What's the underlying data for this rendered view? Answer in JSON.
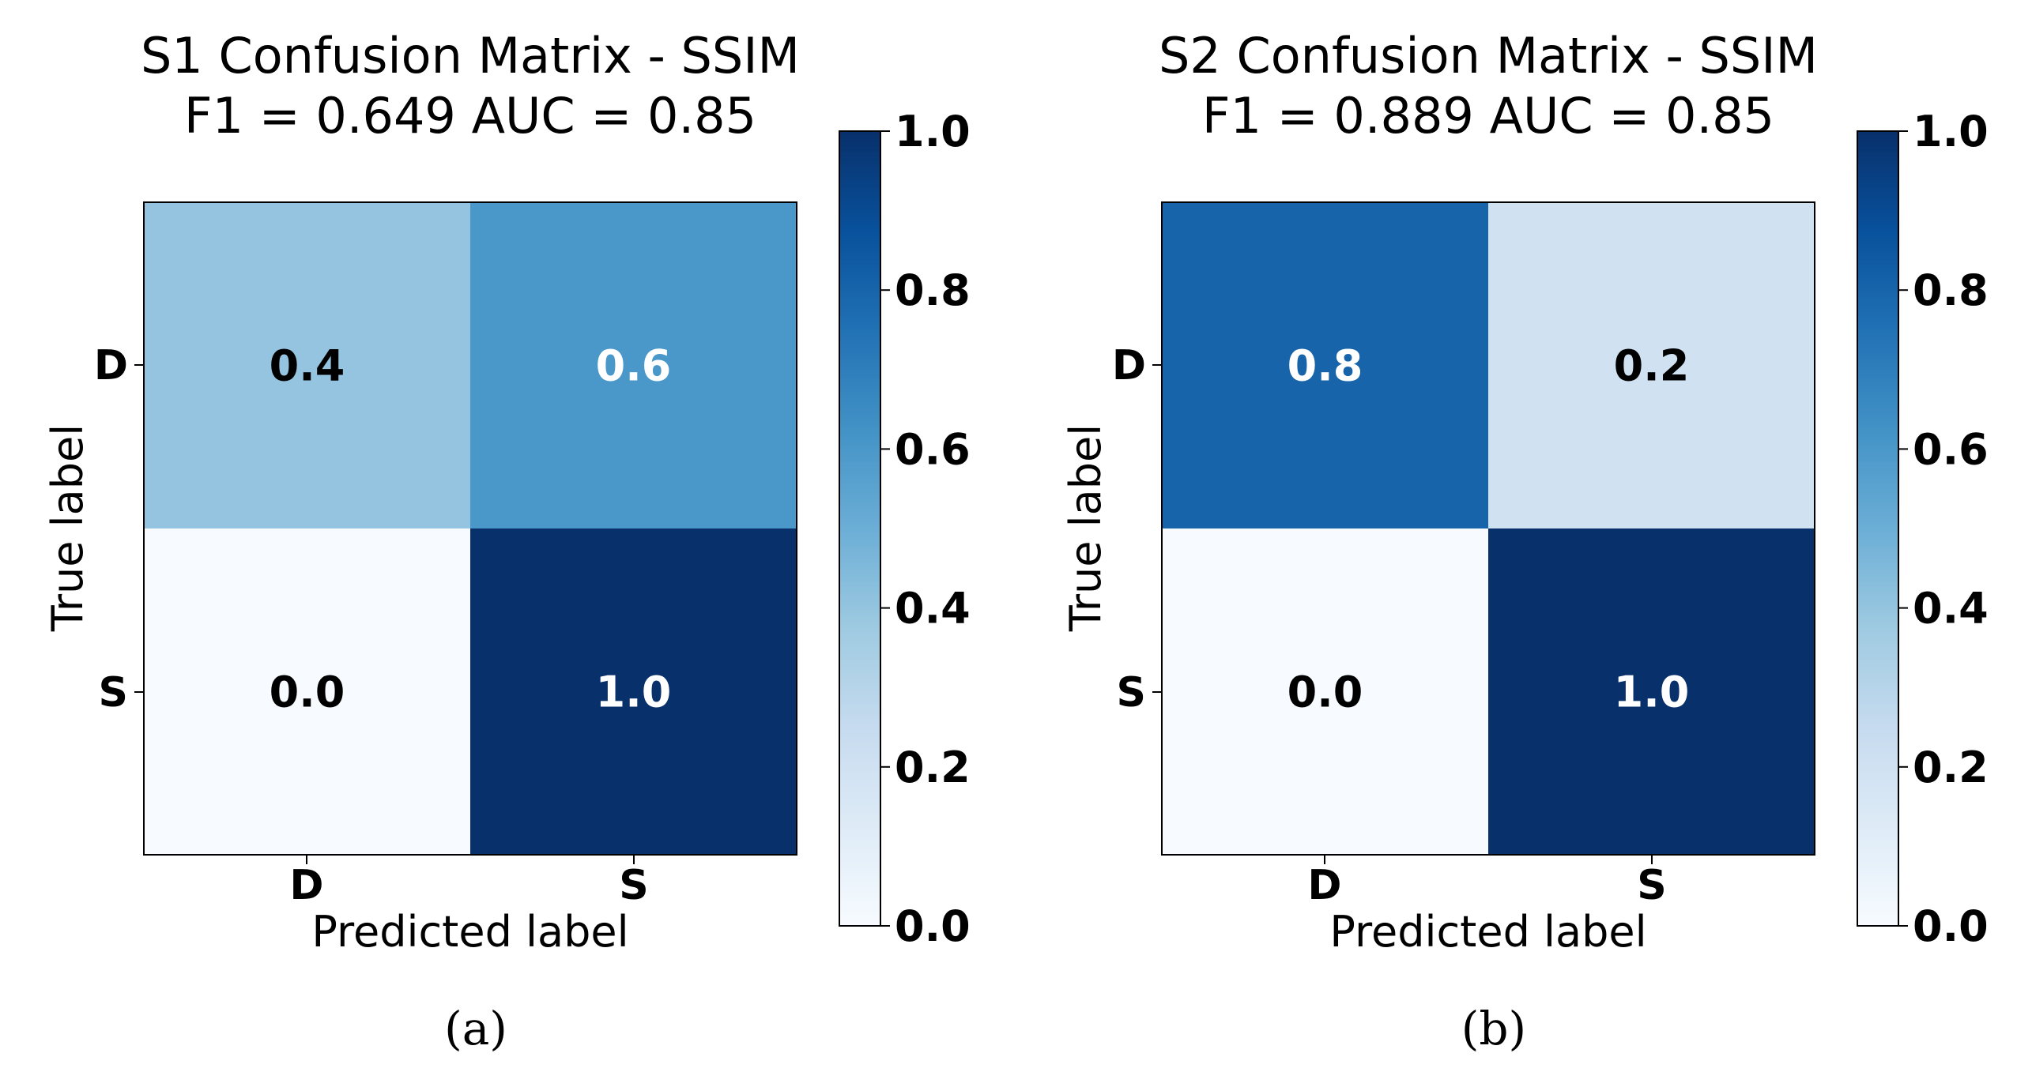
{
  "chart_data": [
    {
      "type": "heatmap",
      "title_line1": "S1 Confusion Matrix - SSIM",
      "title_line2": "F1 = 0.649  AUC = 0.85",
      "xlabel": "Predicted label",
      "ylabel": "True label",
      "x_categories": [
        "D",
        "S"
      ],
      "y_categories": [
        "D",
        "S"
      ],
      "values": [
        [
          0.4,
          0.6
        ],
        [
          0.0,
          1.0
        ]
      ],
      "value_labels": [
        [
          "0.4",
          "0.6"
        ],
        [
          "0.0",
          "1.0"
        ]
      ],
      "colormap": "Blues",
      "vmin": 0.0,
      "vmax": 1.0,
      "colorbar_ticks": [
        "0.0",
        "0.2",
        "0.4",
        "0.6",
        "0.8",
        "1.0"
      ],
      "caption": "(a)"
    },
    {
      "type": "heatmap",
      "title_line1": "S2 Confusion Matrix - SSIM",
      "title_line2": "F1 = 0.889  AUC = 0.85",
      "xlabel": "Predicted label",
      "ylabel": "True label",
      "x_categories": [
        "D",
        "S"
      ],
      "y_categories": [
        "D",
        "S"
      ],
      "values": [
        [
          0.8,
          0.2
        ],
        [
          0.0,
          1.0
        ]
      ],
      "value_labels": [
        [
          "0.8",
          "0.2"
        ],
        [
          "0.0",
          "1.0"
        ]
      ],
      "colormap": "Blues",
      "vmin": 0.0,
      "vmax": 1.0,
      "colorbar_ticks": [
        "0.0",
        "0.2",
        "0.4",
        "0.6",
        "0.8",
        "1.0"
      ],
      "caption": "(b)"
    }
  ],
  "colors": {
    "blues_stops": [
      "#f7fbff",
      "#deebf7",
      "#c6dbef",
      "#9ecae1",
      "#6baed6",
      "#4292c6",
      "#2171b5",
      "#08519c",
      "#08306b"
    ],
    "frame": "#000000",
    "light_text": "#ffffff",
    "dark_text": "#000000"
  }
}
